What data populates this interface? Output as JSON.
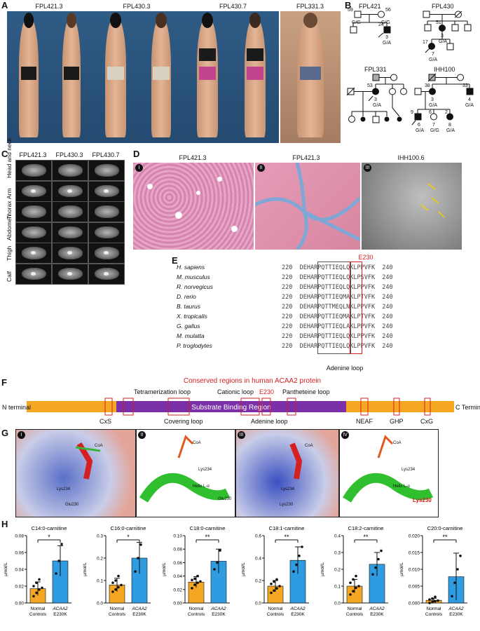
{
  "panels": {
    "A": "A",
    "B": "B",
    "C": "C",
    "D": "D",
    "E": "E",
    "F": "F",
    "G": "G",
    "H": "H"
  },
  "panel_a": {
    "subjects": [
      "FPL421.3",
      "FPL430.3",
      "FPL430.7",
      "FPL331.3"
    ]
  },
  "panel_b": {
    "pedigrees": [
      {
        "name": "FPL421",
        "members": [
          {
            "age": "59",
            "geno": "G/G"
          },
          {
            "age": "56",
            "geno": "G/G"
          },
          {
            "age": "24",
            "geno": "G/A",
            "note": "3"
          }
        ]
      },
      {
        "name": "FPL430",
        "members": [
          {
            "age": "51",
            "geno": "G/A",
            "note": "3"
          },
          {
            "age": "17",
            "geno": "G/A",
            "note": "7"
          }
        ]
      },
      {
        "name": "FPL331",
        "members": [
          {
            "age": "53",
            "geno": "G/A",
            "note": "3"
          }
        ]
      },
      {
        "name": "IHH100",
        "members": [
          {
            "age": "38",
            "geno": "G/A",
            "note": "3"
          },
          {
            "age": "33",
            "geno": "G/A",
            "note": "4"
          },
          {
            "age": "9",
            "geno": "G/A",
            "note": "6"
          },
          {
            "age": "6",
            "geno": "G/G",
            "note": "7"
          },
          {
            "age": "2",
            "geno": "G/A",
            "note": "8"
          }
        ]
      }
    ]
  },
  "panel_c": {
    "cols": [
      "FPL421.3",
      "FPL430.3",
      "FPL430.7"
    ],
    "rows": [
      "Head and neck",
      "Arm",
      "Thorax",
      "Abdomen",
      "Thigh",
      "Calf"
    ]
  },
  "panel_d": {
    "titles": [
      "FPL421.3",
      "FPL421.3",
      "IHH100.6"
    ],
    "subs": [
      "I",
      "II",
      "III"
    ]
  },
  "panel_e": {
    "mutation": "E230",
    "footer": "Adenine loop",
    "species": [
      {
        "name": "H. sapiens",
        "start": "220",
        "seq": "DEHARPQTTIEQLQKLPPVFK",
        "end": "240"
      },
      {
        "name": "M. musculus",
        "start": "220",
        "seq": "DEHARPQTTIEQLQKLPSVFK",
        "end": "240"
      },
      {
        "name": "R. norvegicus",
        "start": "220",
        "seq": "DEHARPQTTIEQLQKLPPVFK",
        "end": "240"
      },
      {
        "name": "D. rerio",
        "start": "220",
        "seq": "DEHARPQTTIEQMAKLPTVFK",
        "end": "240"
      },
      {
        "name": "B. taurus",
        "start": "220",
        "seq": "DEHARPQTTMEQLNKLPPVFK",
        "end": "240"
      },
      {
        "name": "X. tropicalis",
        "start": "220",
        "seq": "DEHARPQTTIEQMAKLPTVFK",
        "end": "240"
      },
      {
        "name": "G. gallus",
        "start": "220",
        "seq": "DEHARPQTTIEQLAKLPPVFK",
        "end": "240"
      },
      {
        "name": "M. mulatta",
        "start": "220",
        "seq": "DEHARPQTTIEQLQKLPPVFK",
        "end": "240"
      },
      {
        "name": "P. troglodytes",
        "start": "220",
        "seq": "DEHARPQTTIEQLQKLPPVFK",
        "end": "240"
      }
    ]
  },
  "panel_f": {
    "title": "Conserved regions in human ACAA2 protein",
    "n_term": "N terminal",
    "c_term": "C Terminal",
    "region": "Substrate Binding Region",
    "top_labels": [
      "Tetramerization loop",
      "Cationic loop",
      "E230",
      "Pantheteine loop"
    ],
    "bottom_labels": [
      "CxS",
      "Covering loop",
      "Adenine loop",
      "NEAF",
      "GHP",
      "CxG"
    ]
  },
  "panel_g": {
    "subs": [
      "I",
      "II",
      "III",
      "IV"
    ],
    "labels": {
      "coa": "CoA",
      "lys234": "Lys234",
      "glu230": "Glu230",
      "helix": "Helix L-α",
      "lys230": "Lys230"
    }
  },
  "chart_data": [
    {
      "type": "bar",
      "title": "C14:0-carnitine",
      "ylabel": "µmol/L",
      "categories": [
        "Normal Controls",
        "ACAA2 E230K"
      ],
      "values": [
        0.017,
        0.05
      ],
      "errors": [
        0.008,
        0.018
      ],
      "ylim": [
        0,
        0.08
      ],
      "yticks": [
        "0.00",
        "0.02",
        "0.04",
        "0.06",
        "0.08"
      ],
      "sig": "*",
      "points": [
        [
          0.008,
          0.012,
          0.016,
          0.018,
          0.02,
          0.024,
          0.028
        ],
        [
          0.035,
          0.05,
          0.07
        ]
      ]
    },
    {
      "type": "bar",
      "title": "C16:0-carnitine",
      "ylabel": "µmol/L",
      "categories": [
        "Normal Controls",
        "ACAA2 E230K"
      ],
      "values": [
        0.08,
        0.2
      ],
      "errors": [
        0.03,
        0.07
      ],
      "ylim": [
        0,
        0.3
      ],
      "yticks": [
        "0.0",
        "0.1",
        "0.2",
        "0.3"
      ],
      "sig": "*",
      "points": [
        [
          0.05,
          0.06,
          0.07,
          0.08,
          0.09,
          0.1,
          0.12
        ],
        [
          0.14,
          0.2,
          0.26
        ]
      ]
    },
    {
      "type": "bar",
      "title": "C18:0-carnitine",
      "ylabel": "µmol/L",
      "categories": [
        "Normal Controls",
        "ACAA2 E230K"
      ],
      "values": [
        0.031,
        0.062
      ],
      "errors": [
        0.008,
        0.018
      ],
      "ylim": [
        0,
        0.1
      ],
      "yticks": [
        "0.00",
        "0.02",
        "0.04",
        "0.06",
        "0.08",
        "0.10"
      ],
      "sig": "**",
      "points": [
        [
          0.022,
          0.027,
          0.03,
          0.032,
          0.034,
          0.036,
          0.04
        ],
        [
          0.05,
          0.06,
          0.078
        ]
      ]
    },
    {
      "type": "bar",
      "title": "C18:1-carnitine",
      "ylabel": "µmol/L",
      "categories": [
        "Normal Controls",
        "ACAA2 E230K"
      ],
      "values": [
        0.15,
        0.38
      ],
      "errors": [
        0.05,
        0.12
      ],
      "ylim": [
        0,
        0.6
      ],
      "yticks": [
        "0.0",
        "0.2",
        "0.4",
        "0.6"
      ],
      "sig": "**",
      "points": [
        [
          0.09,
          0.11,
          0.13,
          0.15,
          0.17,
          0.19,
          0.21
        ],
        [
          0.28,
          0.34,
          0.42,
          0.5
        ]
      ]
    },
    {
      "type": "bar",
      "title": "C18:2-carnitine",
      "ylabel": "µmol/L",
      "categories": [
        "Normal Controls",
        "ACAA2 E230K"
      ],
      "values": [
        0.1,
        0.23
      ],
      "errors": [
        0.04,
        0.07
      ],
      "ylim": [
        0,
        0.4
      ],
      "yticks": [
        "0.0",
        "0.1",
        "0.2",
        "0.3",
        "0.4"
      ],
      "sig": "**",
      "points": [
        [
          0.05,
          0.07,
          0.09,
          0.1,
          0.12,
          0.14,
          0.16
        ],
        [
          0.17,
          0.21,
          0.26,
          0.31
        ]
      ]
    },
    {
      "type": "bar",
      "title": "C20:0-carnitine",
      "ylabel": "µmol/L",
      "categories": [
        "Normal Controls",
        "ACAA2 E230K"
      ],
      "values": [
        0.0008,
        0.0078
      ],
      "errors": [
        0.0006,
        0.007
      ],
      "ylim": [
        0,
        0.02
      ],
      "yticks": [
        "0.000",
        "0.005",
        "0.010",
        "0.015",
        "0.020"
      ],
      "sig": "**",
      "points": [
        [
          0.0,
          0.0003,
          0.0005,
          0.0007,
          0.001,
          0.0013,
          0.0018
        ],
        [
          0.002,
          0.006,
          0.01,
          0.014
        ]
      ]
    }
  ],
  "colors": {
    "orange": "#f5a623",
    "blue": "#2f9be0",
    "purple": "#7b2fa8",
    "red": "#d62020"
  }
}
